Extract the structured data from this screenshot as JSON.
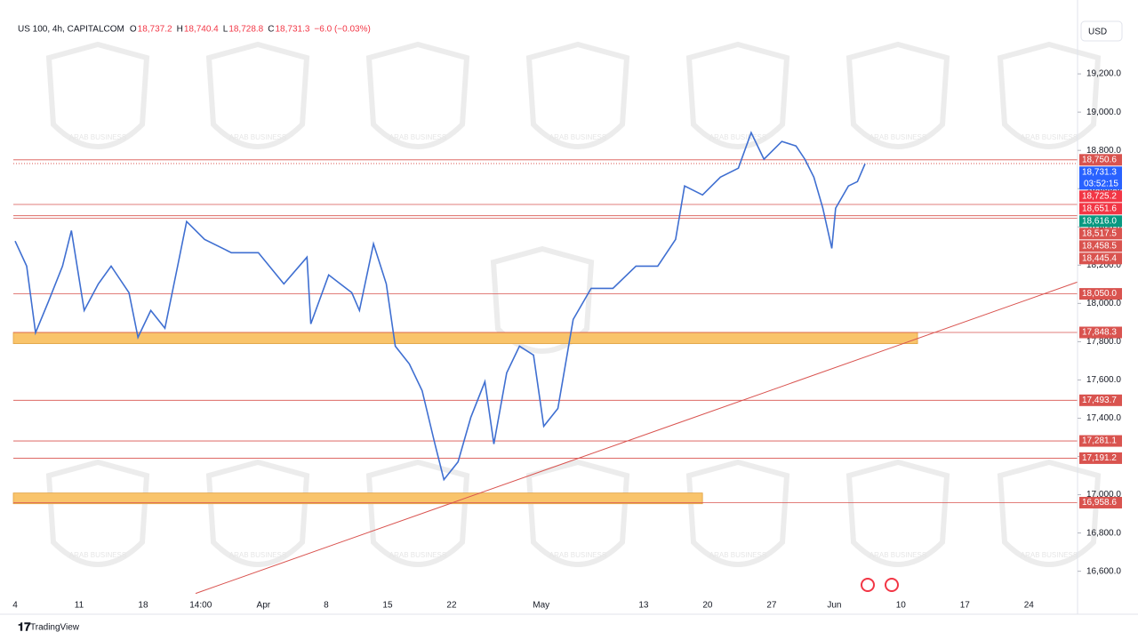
{
  "header": {
    "symbol": "US 100, 4h, CAPITALCOM",
    "ohlc": [
      {
        "key": "O",
        "text": "18,737.2"
      },
      {
        "key": "H",
        "text": "18,740.4"
      },
      {
        "key": "L",
        "text": "18,728.8"
      },
      {
        "key": "C",
        "text": "18,731.3"
      }
    ],
    "change": "−6.0 (−0.03%)",
    "currency": "USD"
  },
  "footer": "TradingView",
  "watermark": "ARAB BUSINESS",
  "chart_data": {
    "type": "line",
    "x": [
      0,
      0.9,
      1.6,
      2.6,
      3.7,
      4.4,
      5.4,
      6.5,
      7.5,
      8.9,
      9.6,
      10.6,
      11.7,
      12.7,
      13.4,
      14.8,
      16.9,
      19.0,
      21.0,
      22.8,
      23.1,
      24.5,
      26.3,
      26.9,
      28.0,
      29.0,
      29.7,
      30.8,
      31.8,
      32.8,
      33.5,
      34.6,
      35.6,
      36.7,
      37.4,
      38.4,
      39.4,
      40.5,
      41.3,
      42.4,
      43.6,
      45.0,
      46.7,
      48.5,
      50.2,
      51.6,
      52.3,
      53.7,
      55.1,
      56.5,
      57.5,
      58.5,
      59.9,
      61.0,
      61.7,
      62.4,
      63.1,
      63.8,
      64.1,
      65.1,
      65.8,
      66.4
    ],
    "series": [
      {
        "name": "US 100",
        "color": "#3f6fd1",
        "values": [
          18326,
          18195,
          17847,
          18009,
          18195,
          18381,
          17963,
          18102,
          18195,
          18056,
          17823,
          17963,
          17870,
          18195,
          18428,
          18335,
          18265,
          18265,
          18102,
          18242,
          17893,
          18149,
          18056,
          17963,
          18312,
          18102,
          17777,
          17684,
          17544,
          17265,
          17079,
          17172,
          17405,
          17591,
          17265,
          17637,
          17777,
          17730,
          17358,
          17451,
          17916,
          18079,
          18079,
          18195,
          18195,
          18335,
          18614,
          18567,
          18660,
          18707,
          18893,
          18754,
          18847,
          18823,
          18754,
          18660,
          18498,
          18288,
          18498,
          18614,
          18637,
          18730
        ]
      }
    ],
    "xlim": [
      0,
      83
    ],
    "xticks": [
      {
        "value": 0,
        "label": "4"
      },
      {
        "value": 5,
        "label": "11"
      },
      {
        "value": 10,
        "label": "18"
      },
      {
        "value": 14.5,
        "label": "14:00"
      },
      {
        "value": 19.4,
        "label": "Apr"
      },
      {
        "value": 24.3,
        "label": "8"
      },
      {
        "value": 29.1,
        "label": "15"
      },
      {
        "value": 34.1,
        "label": "22"
      },
      {
        "value": 41.1,
        "label": "May"
      },
      {
        "value": 49.1,
        "label": "13"
      },
      {
        "value": 54.1,
        "label": "20"
      },
      {
        "value": 59.1,
        "label": "27"
      },
      {
        "value": 64,
        "label": "Jun"
      },
      {
        "value": 69.2,
        "label": "10"
      },
      {
        "value": 74.2,
        "label": "17"
      },
      {
        "value": 79.2,
        "label": "24"
      }
    ],
    "ylim": [
      16380,
      19470
    ],
    "yticks": [
      {
        "value": 16600,
        "label": "16,600.0"
      },
      {
        "value": 16800,
        "label": "16,800.0"
      },
      {
        "value": 17000,
        "label": "17,000.0"
      },
      {
        "value": 17200,
        "label": "17,200.0"
      },
      {
        "value": 17400,
        "label": "17,400.0"
      },
      {
        "value": 17600,
        "label": "17,600.0"
      },
      {
        "value": 17800,
        "label": "17,800.0"
      },
      {
        "value": 18000,
        "label": "18,000.0"
      },
      {
        "value": 18200,
        "label": "18,200.0"
      },
      {
        "value": 18400,
        "label": "18,400.0"
      },
      {
        "value": 18600,
        "label": "18,600.0"
      },
      {
        "value": 18800,
        "label": "18,800.0"
      },
      {
        "value": 19000,
        "label": "19,000.0"
      },
      {
        "value": 19200,
        "label": "19,200.0"
      }
    ],
    "levels": {
      "color": "#d9534f",
      "values": [
        18750.6,
        18517.5,
        18458.5,
        18445.4,
        18050.0,
        17848.3,
        17493.7,
        17281.1,
        17191.2,
        16958.6
      ],
      "value_labels": [
        "18,750.6",
        "18,517.5",
        "18,458.5",
        "18,445.4",
        "18,050.0",
        "17,848.3",
        "17,493.7",
        "17,281.1",
        "17,191.2",
        "16,958.6"
      ]
    },
    "indicators": {
      "values": [
        18731.3,
        18725.2,
        18651.6,
        18616.0
      ],
      "value_labels": [
        "18,731.3",
        "18,725.2",
        "18,651.6",
        "18,616.0"
      ],
      "colors": [
        "#2962ff",
        "#f23645",
        "#f23645",
        "#089981"
      ],
      "countdown": "03:52:15"
    },
    "zones": {
      "color": "#f9c46b",
      "x_end": [
        70.5,
        53.7
      ],
      "low": [
        17790,
        16953
      ],
      "high": [
        17848.3,
        17009
      ]
    },
    "trendline": {
      "color": "#d9534f",
      "x": [
        14.1,
        83
      ],
      "values": [
        16484,
        18112
      ]
    }
  }
}
